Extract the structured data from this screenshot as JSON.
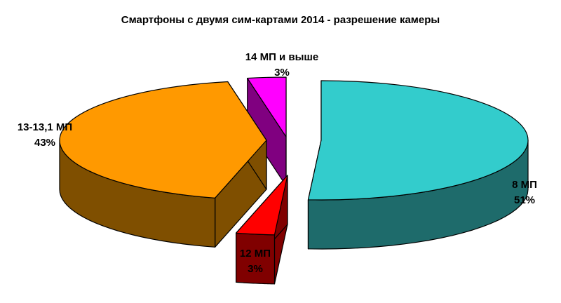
{
  "chart_data": {
    "type": "pie",
    "style": "3d-exploded",
    "title": "Смартфоны с двумя сим-картами 2014 - разрешение камеры",
    "slices": [
      {
        "label": "8 МП",
        "value": 51,
        "percent_label": "51%",
        "color": "#33CCCC",
        "side_color": "#1E6B6B"
      },
      {
        "label": "12 МП",
        "value": 3,
        "percent_label": "3%",
        "color": "#FF0000",
        "side_color": "#800000"
      },
      {
        "label": "13-13,1 МП",
        "value": 43,
        "percent_label": "43%",
        "color": "#FF9900",
        "side_color": "#7F4F00"
      },
      {
        "label": "14 МП и выше",
        "value": 3,
        "percent_label": "3%",
        "color": "#FF00FF",
        "side_color": "#800080"
      }
    ],
    "legend": "none",
    "labels": "outside"
  }
}
